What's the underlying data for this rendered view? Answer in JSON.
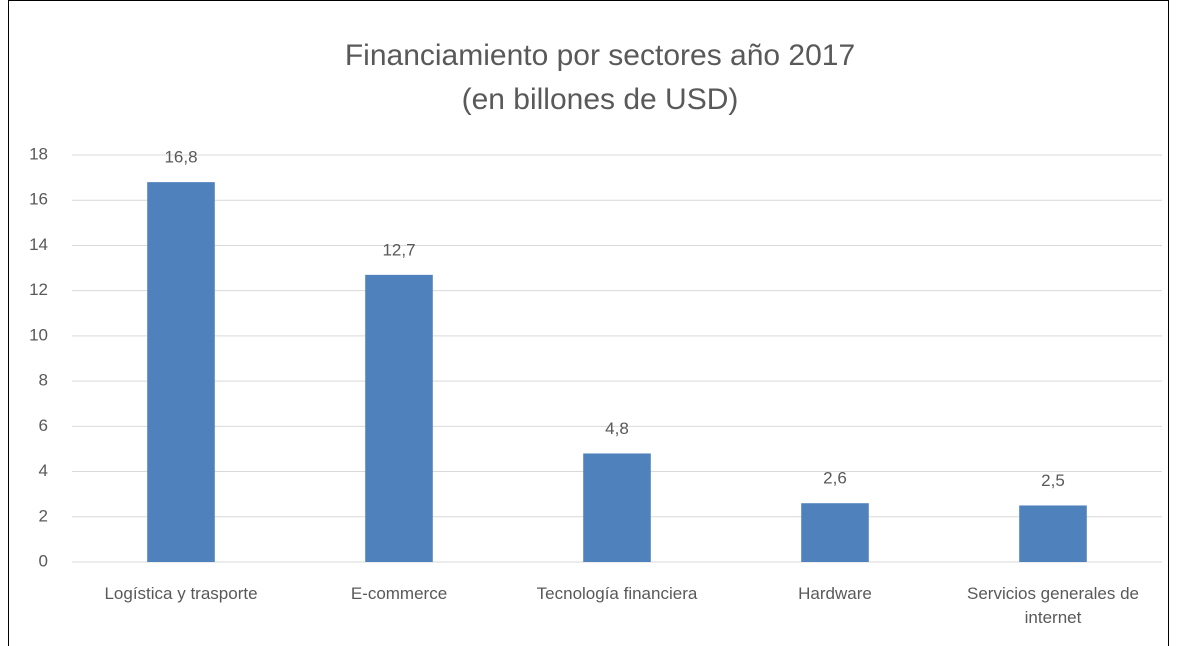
{
  "chart_data": {
    "type": "bar",
    "title": "Financiamiento por sectores año 2017",
    "subtitle": "(en billones de USD)",
    "categories": [
      "Logística y trasporte",
      "E-commerce",
      "Tecnología financiera",
      "Hardware",
      "Servicios generales de internet"
    ],
    "values": [
      16.8,
      12.7,
      4.8,
      2.6,
      2.5
    ],
    "value_labels": [
      "16,8",
      "12,7",
      "4,8",
      "2,6",
      "2,5"
    ],
    "color": "#4f81bd",
    "ylim": [
      0,
      18
    ],
    "yticks": [
      0,
      2,
      4,
      6,
      8,
      10,
      12,
      14,
      16,
      18
    ],
    "grid": true
  }
}
